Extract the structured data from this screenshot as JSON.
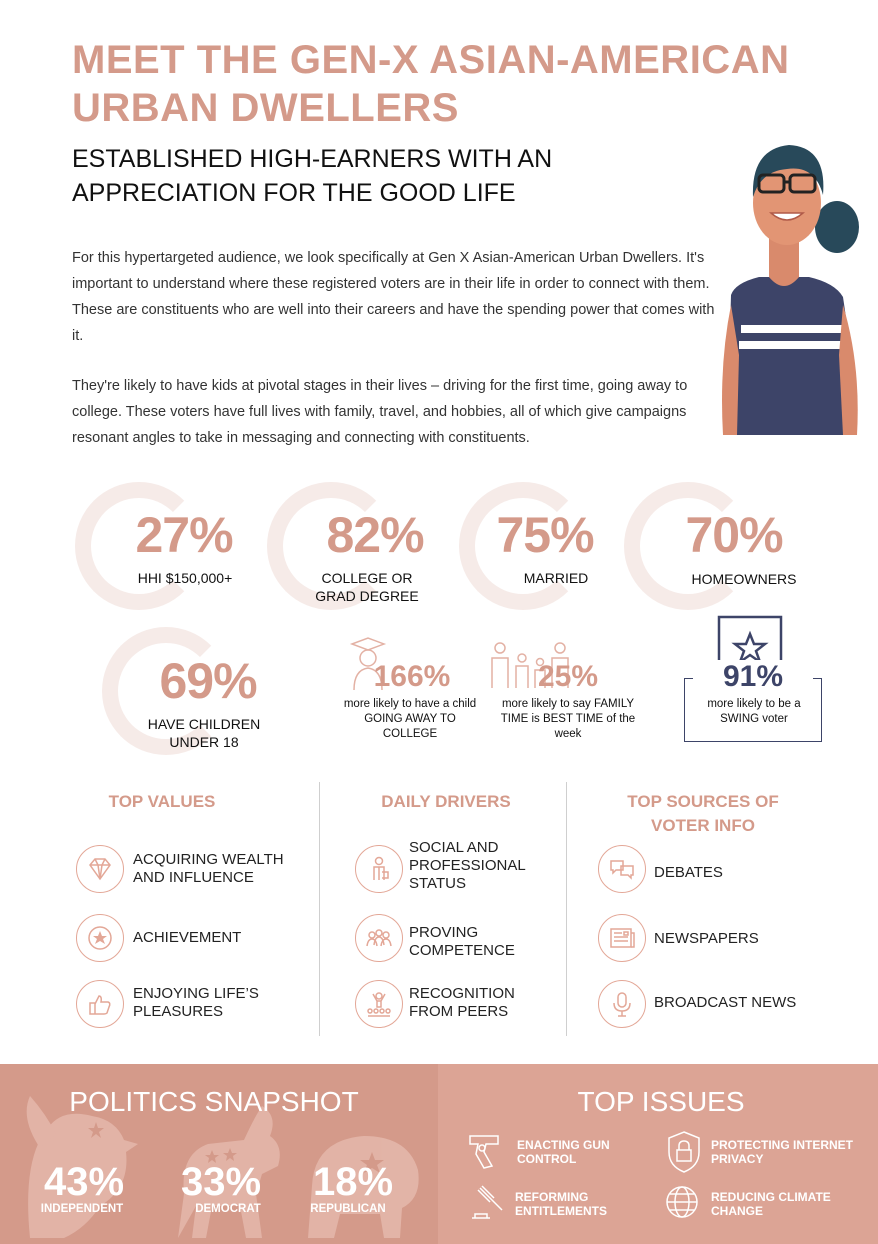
{
  "header": {
    "title": "MEET THE GEN-X ASIAN-AMERICAN URBAN DWELLERS",
    "subtitle": "ESTABLISHED HIGH-EARNERS WITH AN APPRECIATION FOR THE GOOD LIFE"
  },
  "intro": {
    "paragraph1": "For this hypertargeted audience, we look specifically at Gen X Asian-American Urban Dwellers. It's important to understand where these registered voters are in their life in order to connect with them. These are constituents who are well into their careers and have the spending power that comes with it.",
    "paragraph2": "They're likely to have kids at pivotal stages in their lives – driving for the first time, going away to college. These voters have full lives with family, travel, and hobbies, all of which give campaigns resonant angles to take in messaging and connecting with constituents."
  },
  "stats": [
    {
      "value": "27%",
      "label": "HHI $150,000+"
    },
    {
      "value": "82%",
      "label": "COLLEGE OR GRAD DEGREE"
    },
    {
      "value": "75%",
      "label": "MARRIED"
    },
    {
      "value": "70%",
      "label": "HOMEOWNERS"
    },
    {
      "value": "69%",
      "label": "HAVE CHILDREN UNDER 18"
    }
  ],
  "likely": [
    {
      "value": "166%",
      "label": "more likely to have a child GOING AWAY TO COLLEGE",
      "icon": "graduate-icon"
    },
    {
      "value": "25%",
      "label": "more likely to say FAMILY TIME is BEST TIME of the week",
      "icon": "family-icon"
    },
    {
      "value": "91%",
      "label": "more likely to be a SWING voter",
      "icon": "ballot-star-icon"
    }
  ],
  "columns": {
    "values": {
      "heading": "TOP VALUES",
      "items": [
        {
          "label": "ACQUIRING WEALTH AND INFLUENCE",
          "icon": "diamond-icon"
        },
        {
          "label": "ACHIEVEMENT",
          "icon": "star-badge-icon"
        },
        {
          "label": "ENJOYING LIFE’S PLEASURES",
          "icon": "thumbs-up-icon"
        }
      ]
    },
    "drivers": {
      "heading": "DAILY DRIVERS",
      "items": [
        {
          "label": "SOCIAL AND PROFESSIONAL STATUS",
          "icon": "professional-icon"
        },
        {
          "label": "PROVING COMPETENCE",
          "icon": "group-icon"
        },
        {
          "label": "RECOGNITION FROM PEERS",
          "icon": "audience-icon"
        }
      ]
    },
    "sources": {
      "heading": "TOP SOURCES OF VOTER INFO",
      "items": [
        {
          "label": "DEBATES",
          "icon": "speech-bubbles-icon"
        },
        {
          "label": "NEWSPAPERS",
          "icon": "newspaper-icon"
        },
        {
          "label": "BROADCAST NEWS",
          "icon": "microphone-icon"
        }
      ]
    }
  },
  "politics": {
    "heading": "POLITICS SNAPSHOT",
    "items": [
      {
        "value": "43%",
        "label": "INDEPENDENT",
        "share": 43
      },
      {
        "value": "33%",
        "label": "DEMOCRAT",
        "share": 33
      },
      {
        "value": "18%",
        "label": "REPUBLICAN",
        "share": 18
      }
    ]
  },
  "issues": {
    "heading": "TOP ISSUES",
    "items": [
      {
        "label": "ENACTING GUN CONTROL",
        "icon": "gun-icon"
      },
      {
        "label": "PROTECTING INTERNET PRIVACY",
        "icon": "lock-shield-icon"
      },
      {
        "label": "REFORMING ENTITLEMENTS",
        "icon": "gavel-icon"
      },
      {
        "label": "REDUCING CLIMATE CHANGE",
        "icon": "globe-icon"
      }
    ]
  },
  "colors": {
    "accent": "#d49a8a",
    "panel_left": "#d49a8a",
    "panel_right": "#dca495",
    "navy": "#3d4468"
  }
}
